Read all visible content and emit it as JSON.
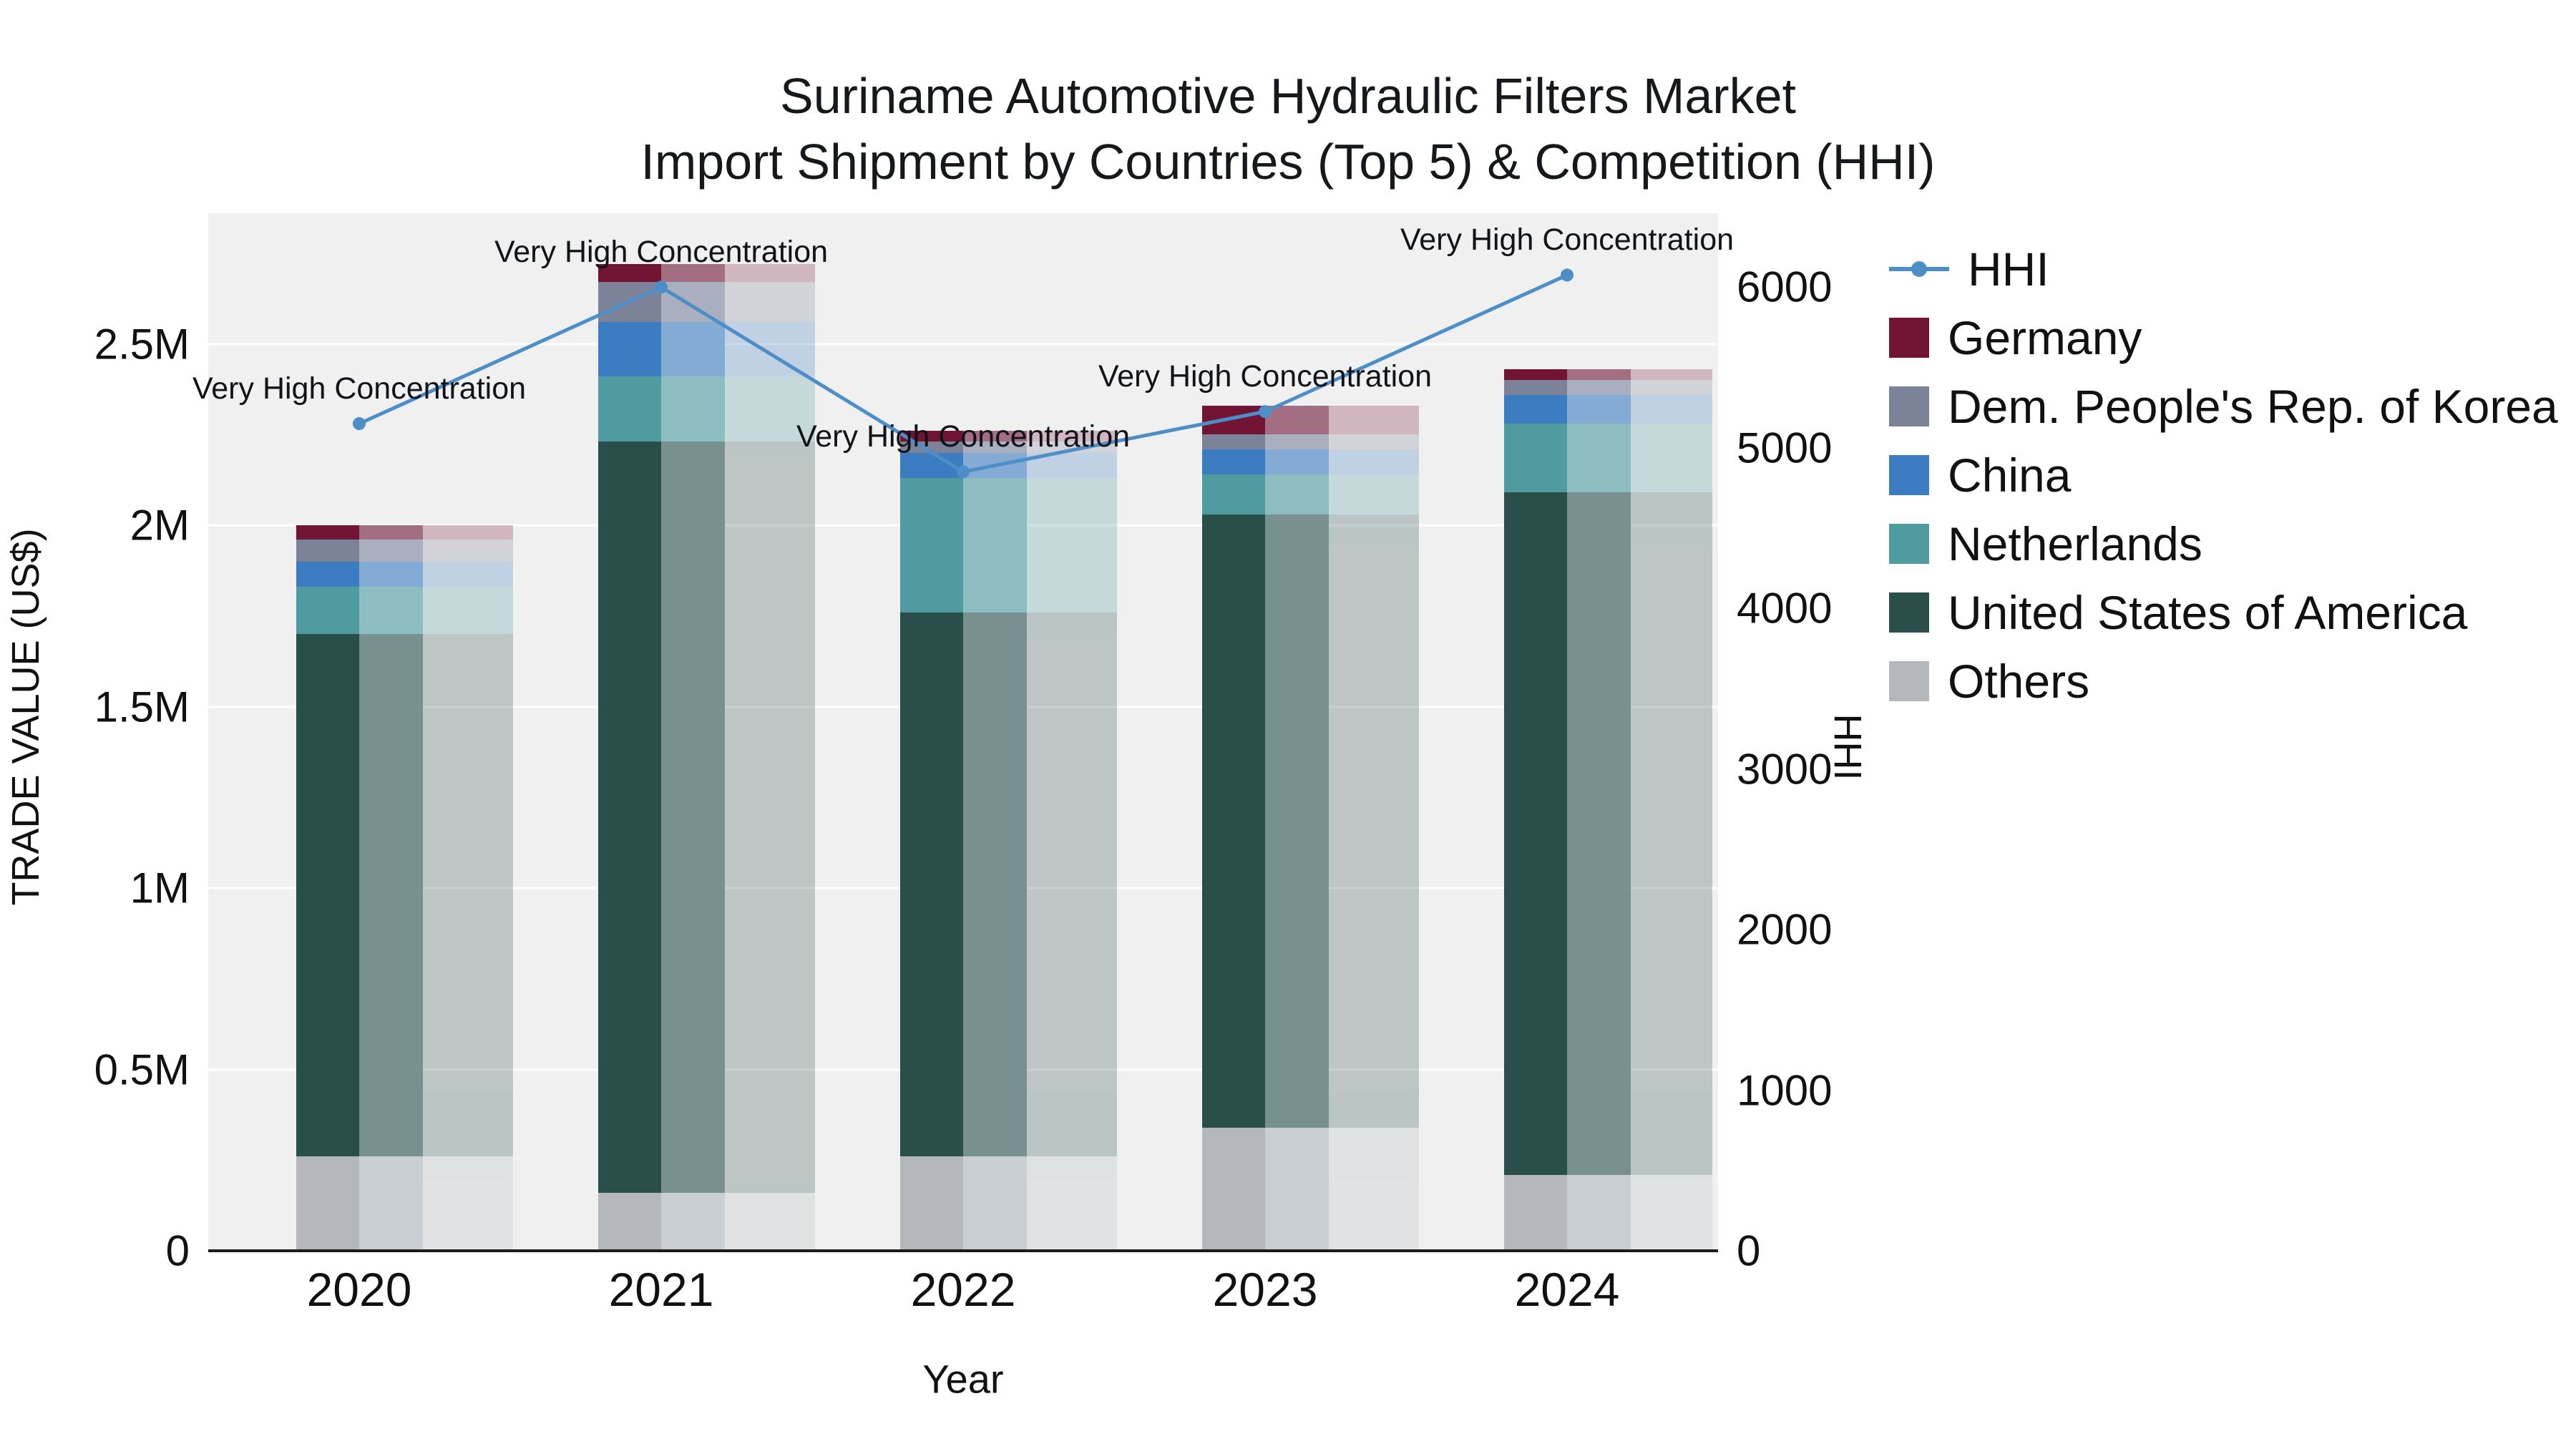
{
  "chart_data": {
    "type": "bar",
    "title": "Suriname Automotive Hydraulic Filters Market",
    "subtitle": "Import Shipment by Countries (Top 5) & Competition (HHI)",
    "xlabel": "Year",
    "ylabel_left": "TRADE VALUE (US$)",
    "ylabel_right": "HHI",
    "categories": [
      "2020",
      "2021",
      "2022",
      "2023",
      "2024"
    ],
    "series": [
      {
        "name": "Others",
        "color": "#b4b8bc",
        "values": [
          260000,
          160000,
          260000,
          340000,
          210000
        ]
      },
      {
        "name": "United States of America",
        "color": "#2a4f4a",
        "values": [
          1440000,
          2070000,
          1500000,
          1690000,
          1880000
        ]
      },
      {
        "name": "Netherlands",
        "color": "#4f9b9f",
        "values": [
          130000,
          180000,
          370000,
          110000,
          190000
        ]
      },
      {
        "name": "China",
        "color": "#3c7cc0",
        "values": [
          70000,
          150000,
          70000,
          70000,
          80000
        ]
      },
      {
        "name": "Dem. People's Rep. of Korea",
        "color": "#7c8399",
        "values": [
          60000,
          110000,
          30000,
          40000,
          40000
        ]
      },
      {
        "name": "Germany",
        "color": "#721433",
        "values": [
          40000,
          50000,
          30000,
          80000,
          30000
        ]
      }
    ],
    "line_series": {
      "name": "HHI",
      "color": "#4e8ec8",
      "values": [
        5150,
        6000,
        4850,
        5225,
        6075
      ]
    },
    "annotations": [
      "Very High Concentration",
      "Very High Concentration",
      "Very High Concentration",
      "Very High Concentration",
      "Very High Concentration"
    ],
    "axes": {
      "left": {
        "max": 2860000,
        "ticks": [
          {
            "value": 0,
            "label": "0"
          },
          {
            "value": 500000,
            "label": "0.5M"
          },
          {
            "value": 1000000,
            "label": "1M"
          },
          {
            "value": 1500000,
            "label": "1.5M"
          },
          {
            "value": 2000000,
            "label": "2M"
          },
          {
            "value": 2500000,
            "label": "2.5M"
          }
        ]
      },
      "right": {
        "max": 6460,
        "ticks": [
          {
            "value": 0,
            "label": "0"
          },
          {
            "value": 1000,
            "label": "1000"
          },
          {
            "value": 2000,
            "label": "2000"
          },
          {
            "value": 3000,
            "label": "3000"
          },
          {
            "value": 4000,
            "label": "4000"
          },
          {
            "value": 5000,
            "label": "5000"
          },
          {
            "value": 6000,
            "label": "6000"
          }
        ]
      }
    },
    "legend": [
      {
        "label": "HHI",
        "color": "#4e8ec8",
        "type": "line"
      },
      {
        "label": "Germany",
        "color": "#721433",
        "type": "swatch"
      },
      {
        "label": "Dem. People's Rep. of Korea",
        "color": "#7c8399",
        "type": "swatch"
      },
      {
        "label": "China",
        "color": "#3c7cc0",
        "type": "swatch"
      },
      {
        "label": "Netherlands",
        "color": "#4f9b9f",
        "type": "swatch"
      },
      {
        "label": "United States of America",
        "color": "#2a4f4a",
        "type": "swatch"
      },
      {
        "label": "Others",
        "color": "#b4b8bc",
        "type": "swatch"
      }
    ],
    "colors": {
      "plot_bg": "#f0f0f1",
      "axis_line": "#1c1c1c"
    }
  }
}
